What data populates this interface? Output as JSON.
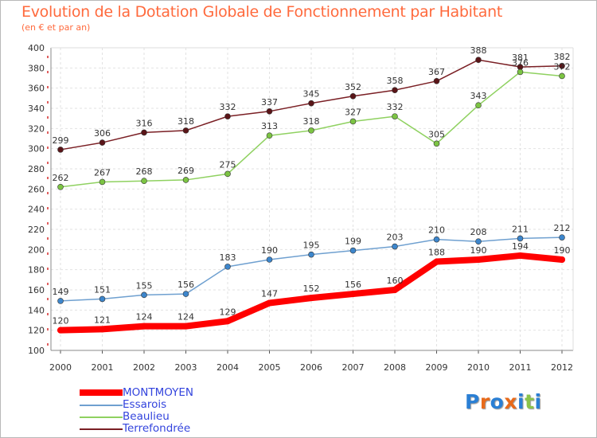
{
  "title": "Evolution de la Dotation Globale de Fonctionnement par Habitant",
  "subtitle": "(en € et par an)",
  "logo": {
    "text": "Proxiti",
    "letters": [
      "P",
      "r",
      "o",
      "x",
      "i",
      "t",
      "i"
    ],
    "colors": [
      "#2a7fd4",
      "#e86a1a",
      "#2a7fd4",
      "#e86a1a",
      "#2a7fd4",
      "#8bc34a",
      "#2a7fd4"
    ]
  },
  "chart_data": {
    "type": "line",
    "title": "Evolution de la Dotation Globale de Fonctionnement par Habitant",
    "subtitle": "(en € et par an)",
    "xlabel": "",
    "ylabel": "",
    "x": [
      "2000",
      "2001",
      "2002",
      "2003",
      "2004",
      "2005",
      "2006",
      "2007",
      "2008",
      "2009",
      "2010",
      "2011",
      "2012"
    ],
    "ylim": [
      100,
      400
    ],
    "yticks": [
      100,
      120,
      140,
      160,
      180,
      200,
      220,
      240,
      260,
      280,
      300,
      320,
      340,
      360,
      380,
      400
    ],
    "grid": true,
    "legend_position": "bottom-left",
    "series": [
      {
        "name": "Terrefondrée",
        "color": "#7a1f24",
        "marker": "#5a1518",
        "values": [
          299,
          306,
          316,
          318,
          332,
          337,
          345,
          352,
          358,
          367,
          388,
          381,
          382
        ]
      },
      {
        "name": "Beaulieu",
        "color": "#8fd160",
        "marker": "#7cc443",
        "values": [
          262,
          267,
          268,
          269,
          275,
          313,
          318,
          327,
          332,
          305,
          343,
          376,
          372
        ]
      },
      {
        "name": "Essarois",
        "color": "#6fa0d0",
        "marker": "#3d86cc",
        "values": [
          149,
          151,
          155,
          156,
          183,
          190,
          195,
          199,
          203,
          210,
          208,
          211,
          212
        ]
      },
      {
        "name": "MONTMOYEN",
        "color": "#ff0000",
        "marker": "#ff0000",
        "values": [
          120,
          121,
          124,
          124,
          129,
          147,
          152,
          156,
          160,
          188,
          190,
          194,
          190
        ]
      }
    ],
    "legend": [
      "MONTMOYEN",
      "Essarois",
      "Beaulieu",
      "Terrefondrée"
    ]
  }
}
